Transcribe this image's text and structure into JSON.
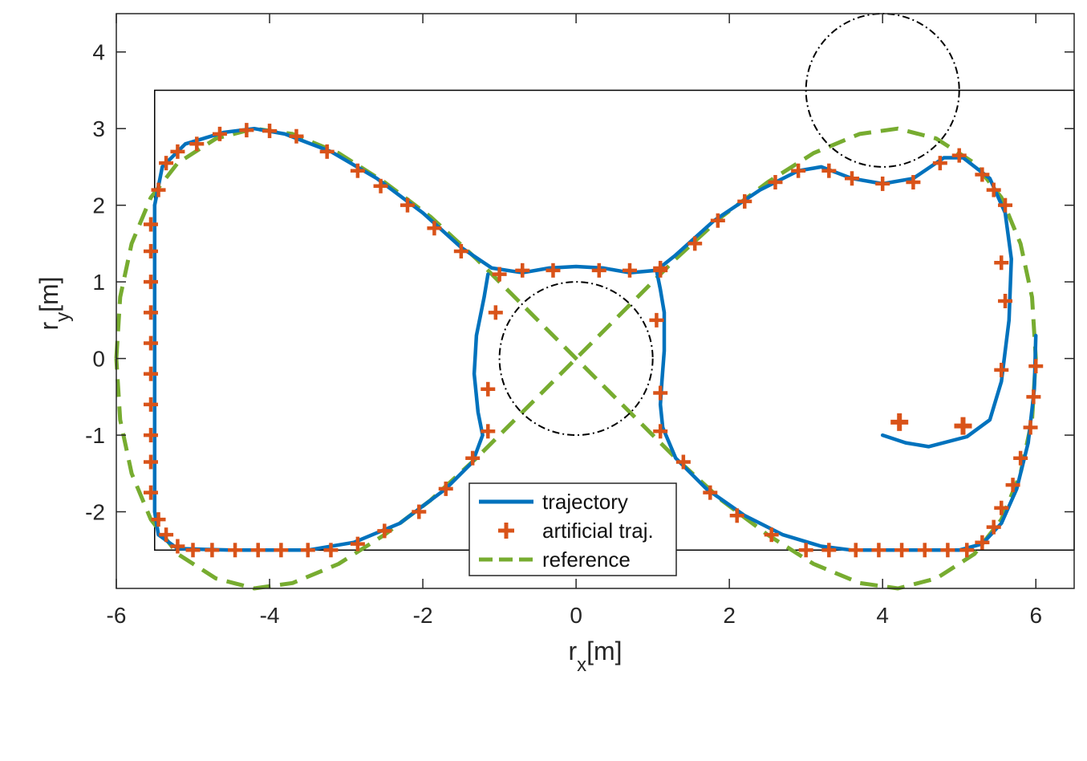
{
  "chart_data": {
    "type": "line",
    "xlabel": {
      "main": "r",
      "sub": "x",
      "unit": "[m]"
    },
    "ylabel": {
      "main": "r",
      "sub": "y",
      "unit": "[m]"
    },
    "xlim": [
      -6,
      6.5
    ],
    "ylim": [
      -3,
      4.5
    ],
    "xticks": [
      -6,
      -4,
      -2,
      0,
      2,
      4,
      6
    ],
    "yticks": [
      -2,
      -1,
      0,
      1,
      2,
      3,
      4
    ],
    "grid": false,
    "legend_position": "bottom-center",
    "colors": {
      "trajectory": "#0072BD",
      "artificial": "#D95319",
      "reference": "#77AC30",
      "obstacle": "#000000",
      "boundary": "#000000"
    },
    "series": [
      {
        "name": "trajectory",
        "style": "solid",
        "points": [
          [
            -5.5,
            2.0
          ],
          [
            -5.4,
            2.5
          ],
          [
            -5.1,
            2.8
          ],
          [
            -4.6,
            2.95
          ],
          [
            -4.2,
            3.0
          ],
          [
            -3.8,
            2.93
          ],
          [
            -3.2,
            2.7
          ],
          [
            -2.6,
            2.35
          ],
          [
            -2.0,
            1.9
          ],
          [
            -1.5,
            1.45
          ],
          [
            -1.1,
            1.18
          ],
          [
            -0.7,
            1.12
          ],
          [
            -0.35,
            1.18
          ],
          [
            0.0,
            1.2
          ],
          [
            0.35,
            1.18
          ],
          [
            0.7,
            1.12
          ],
          [
            1.05,
            1.15
          ],
          [
            1.3,
            1.35
          ],
          [
            1.8,
            1.8
          ],
          [
            2.4,
            2.2
          ],
          [
            2.9,
            2.45
          ],
          [
            3.2,
            2.5
          ],
          [
            3.6,
            2.35
          ],
          [
            4.0,
            2.28
          ],
          [
            4.4,
            2.35
          ],
          [
            4.8,
            2.62
          ],
          [
            5.05,
            2.62
          ],
          [
            5.4,
            2.35
          ],
          [
            5.6,
            1.9
          ],
          [
            5.68,
            1.3
          ],
          [
            5.65,
            0.5
          ],
          [
            5.55,
            -0.3
          ],
          [
            5.4,
            -0.8
          ],
          [
            5.1,
            -1.02
          ],
          [
            4.6,
            -1.15
          ],
          [
            4.3,
            -1.1
          ],
          [
            4.0,
            -1.0
          ]
        ]
      },
      {
        "name": "trajectory",
        "style": "solid",
        "points": [
          [
            -1.15,
            1.1
          ],
          [
            -1.2,
            0.8
          ],
          [
            -1.3,
            0.3
          ],
          [
            -1.33,
            -0.2
          ],
          [
            -1.28,
            -0.7
          ],
          [
            -1.22,
            -1.0
          ],
          [
            -1.35,
            -1.35
          ],
          [
            -1.7,
            -1.7
          ],
          [
            -2.3,
            -2.15
          ],
          [
            -2.9,
            -2.4
          ],
          [
            -3.5,
            -2.5
          ],
          [
            -4.5,
            -2.5
          ],
          [
            -5.2,
            -2.48
          ],
          [
            -5.45,
            -2.3
          ],
          [
            -5.5,
            -2.0
          ],
          [
            -5.5,
            -1.0
          ],
          [
            -5.5,
            0.0
          ],
          [
            -5.5,
            1.0
          ],
          [
            -5.5,
            2.0
          ]
        ]
      },
      {
        "name": "trajectory",
        "style": "solid",
        "points": [
          [
            1.05,
            1.15
          ],
          [
            1.1,
            0.9
          ],
          [
            1.15,
            0.6
          ],
          [
            1.15,
            0.1
          ],
          [
            1.12,
            -0.3
          ],
          [
            1.1,
            -0.6
          ],
          [
            1.13,
            -0.9
          ],
          [
            1.3,
            -1.3
          ],
          [
            1.7,
            -1.7
          ],
          [
            2.2,
            -2.05
          ],
          [
            2.7,
            -2.3
          ],
          [
            3.2,
            -2.45
          ],
          [
            3.6,
            -2.5
          ],
          [
            5.0,
            -2.5
          ],
          [
            5.3,
            -2.42
          ],
          [
            5.55,
            -2.15
          ],
          [
            5.75,
            -1.7
          ],
          [
            5.9,
            -1.1
          ],
          [
            5.98,
            -0.4
          ],
          [
            6.0,
            0.3
          ]
        ]
      },
      {
        "name": "reference",
        "style": "dashed",
        "points": [
          [
            -6.0,
            0.0
          ],
          [
            -5.95,
            0.8
          ],
          [
            -5.8,
            1.5
          ],
          [
            -5.55,
            2.1
          ],
          [
            -5.2,
            2.55
          ],
          [
            -4.7,
            2.87
          ],
          [
            -4.2,
            3.0
          ],
          [
            -3.7,
            2.93
          ],
          [
            -3.1,
            2.68
          ],
          [
            -2.5,
            2.3
          ],
          [
            -1.9,
            1.85
          ],
          [
            -1.3,
            1.3
          ],
          [
            -0.7,
            0.7
          ],
          [
            0.0,
            0.0
          ],
          [
            0.7,
            -0.7
          ],
          [
            1.3,
            -1.3
          ],
          [
            1.9,
            -1.85
          ],
          [
            2.5,
            -2.3
          ],
          [
            3.1,
            -2.68
          ],
          [
            3.7,
            -2.93
          ],
          [
            4.2,
            -3.0
          ],
          [
            4.7,
            -2.87
          ],
          [
            5.2,
            -2.55
          ],
          [
            5.55,
            -2.1
          ],
          [
            5.8,
            -1.5
          ],
          [
            5.95,
            -0.8
          ],
          [
            6.0,
            0.0
          ],
          [
            5.95,
            0.8
          ],
          [
            5.8,
            1.5
          ],
          [
            5.55,
            2.1
          ],
          [
            5.2,
            2.55
          ],
          [
            4.7,
            2.87
          ],
          [
            4.2,
            3.0
          ],
          [
            3.7,
            2.93
          ],
          [
            3.1,
            2.68
          ],
          [
            2.5,
            2.3
          ],
          [
            1.9,
            1.85
          ],
          [
            1.3,
            1.3
          ],
          [
            0.7,
            0.7
          ],
          [
            0.0,
            0.0
          ],
          [
            -0.7,
            -0.7
          ],
          [
            -1.3,
            -1.3
          ],
          [
            -1.9,
            -1.85
          ],
          [
            -2.5,
            -2.3
          ],
          [
            -3.1,
            -2.68
          ],
          [
            -3.7,
            -2.93
          ],
          [
            -4.2,
            -3.0
          ],
          [
            -4.7,
            -2.87
          ],
          [
            -5.2,
            -2.55
          ],
          [
            -5.55,
            -2.1
          ],
          [
            -5.8,
            -1.5
          ],
          [
            -5.95,
            -0.8
          ],
          [
            -6.0,
            0.0
          ]
        ]
      }
    ],
    "artificial_traj": {
      "name": "artificial traj.",
      "points": [
        [
          -5.55,
          1.75
        ],
        [
          -5.55,
          1.4
        ],
        [
          -5.55,
          1.0
        ],
        [
          -5.55,
          0.6
        ],
        [
          -5.55,
          0.2
        ],
        [
          -5.55,
          -0.2
        ],
        [
          -5.55,
          -0.6
        ],
        [
          -5.55,
          -1.0
        ],
        [
          -5.55,
          -1.35
        ],
        [
          -5.55,
          -1.75
        ],
        [
          -5.45,
          -2.1
        ],
        [
          -5.35,
          -2.3
        ],
        [
          -5.2,
          -2.45
        ],
        [
          -5.0,
          -2.5
        ],
        [
          -4.75,
          -2.5
        ],
        [
          -4.45,
          -2.5
        ],
        [
          -4.15,
          -2.5
        ],
        [
          -3.85,
          -2.5
        ],
        [
          -3.5,
          -2.5
        ],
        [
          -3.2,
          -2.5
        ],
        [
          -2.85,
          -2.42
        ],
        [
          -2.5,
          -2.25
        ],
        [
          -2.05,
          -2.0
        ],
        [
          -1.7,
          -1.7
        ],
        [
          -1.35,
          -1.3
        ],
        [
          -1.15,
          -0.95
        ],
        [
          -1.15,
          -0.4
        ],
        [
          -1.05,
          0.6
        ],
        [
          -1.0,
          1.1
        ],
        [
          -0.7,
          1.15
        ],
        [
          -0.3,
          1.15
        ],
        [
          0.3,
          1.15
        ],
        [
          0.7,
          1.15
        ],
        [
          1.1,
          1.15
        ],
        [
          1.05,
          0.5
        ],
        [
          1.1,
          -0.45
        ],
        [
          1.1,
          -0.95
        ],
        [
          1.4,
          -1.35
        ],
        [
          1.75,
          -1.75
        ],
        [
          2.1,
          -2.05
        ],
        [
          2.55,
          -2.3
        ],
        [
          3.0,
          -2.5
        ],
        [
          3.3,
          -2.5
        ],
        [
          3.65,
          -2.5
        ],
        [
          3.95,
          -2.5
        ],
        [
          4.25,
          -2.5
        ],
        [
          4.55,
          -2.5
        ],
        [
          4.85,
          -2.5
        ],
        [
          5.1,
          -2.5
        ],
        [
          5.3,
          -2.4
        ],
        [
          5.45,
          -2.2
        ],
        [
          5.55,
          -1.95
        ],
        [
          5.7,
          -1.65
        ],
        [
          5.8,
          -1.3
        ],
        [
          5.93,
          -0.9
        ],
        [
          5.97,
          -0.5
        ],
        [
          6.0,
          -0.1
        ],
        [
          5.55,
          -0.15
        ],
        [
          5.6,
          0.75
        ],
        [
          5.55,
          1.25
        ],
        [
          5.6,
          2.0
        ],
        [
          5.45,
          2.2
        ],
        [
          5.3,
          2.4
        ],
        [
          5.0,
          2.65
        ],
        [
          4.75,
          2.55
        ],
        [
          4.4,
          2.3
        ],
        [
          4.0,
          2.28
        ],
        [
          3.6,
          2.35
        ],
        [
          3.3,
          2.45
        ],
        [
          2.9,
          2.45
        ],
        [
          2.6,
          2.3
        ],
        [
          2.2,
          2.05
        ],
        [
          1.85,
          1.8
        ],
        [
          1.55,
          1.5
        ],
        [
          1.1,
          1.18
        ],
        [
          -1.5,
          1.4
        ],
        [
          -1.85,
          1.7
        ],
        [
          -2.2,
          2.0
        ],
        [
          -2.55,
          2.25
        ],
        [
          -2.85,
          2.45
        ],
        [
          -3.25,
          2.7
        ],
        [
          -3.65,
          2.9
        ],
        [
          -4.0,
          2.97
        ],
        [
          -4.3,
          2.98
        ],
        [
          -4.65,
          2.93
        ],
        [
          -4.95,
          2.8
        ],
        [
          -5.2,
          2.7
        ],
        [
          -5.35,
          2.55
        ],
        [
          -5.45,
          2.2
        ],
        [
          5.05,
          -0.88
        ]
      ],
      "highlighted": [
        [
          4.22,
          -0.83
        ],
        [
          5.05,
          -0.88
        ]
      ]
    },
    "obstacles": [
      {
        "cx": 0,
        "cy": 0,
        "r": 1.0
      },
      {
        "cx": 4,
        "cy": 3.5,
        "r": 1.0
      }
    ],
    "boundary": {
      "x": [
        -5.5,
        6.5
      ],
      "y": [
        -2.5,
        3.5
      ]
    },
    "legend": [
      {
        "label": "trajectory",
        "style": "solid"
      },
      {
        "label": "artificial traj.",
        "style": "marker"
      },
      {
        "label": "reference",
        "style": "dashed"
      }
    ]
  }
}
